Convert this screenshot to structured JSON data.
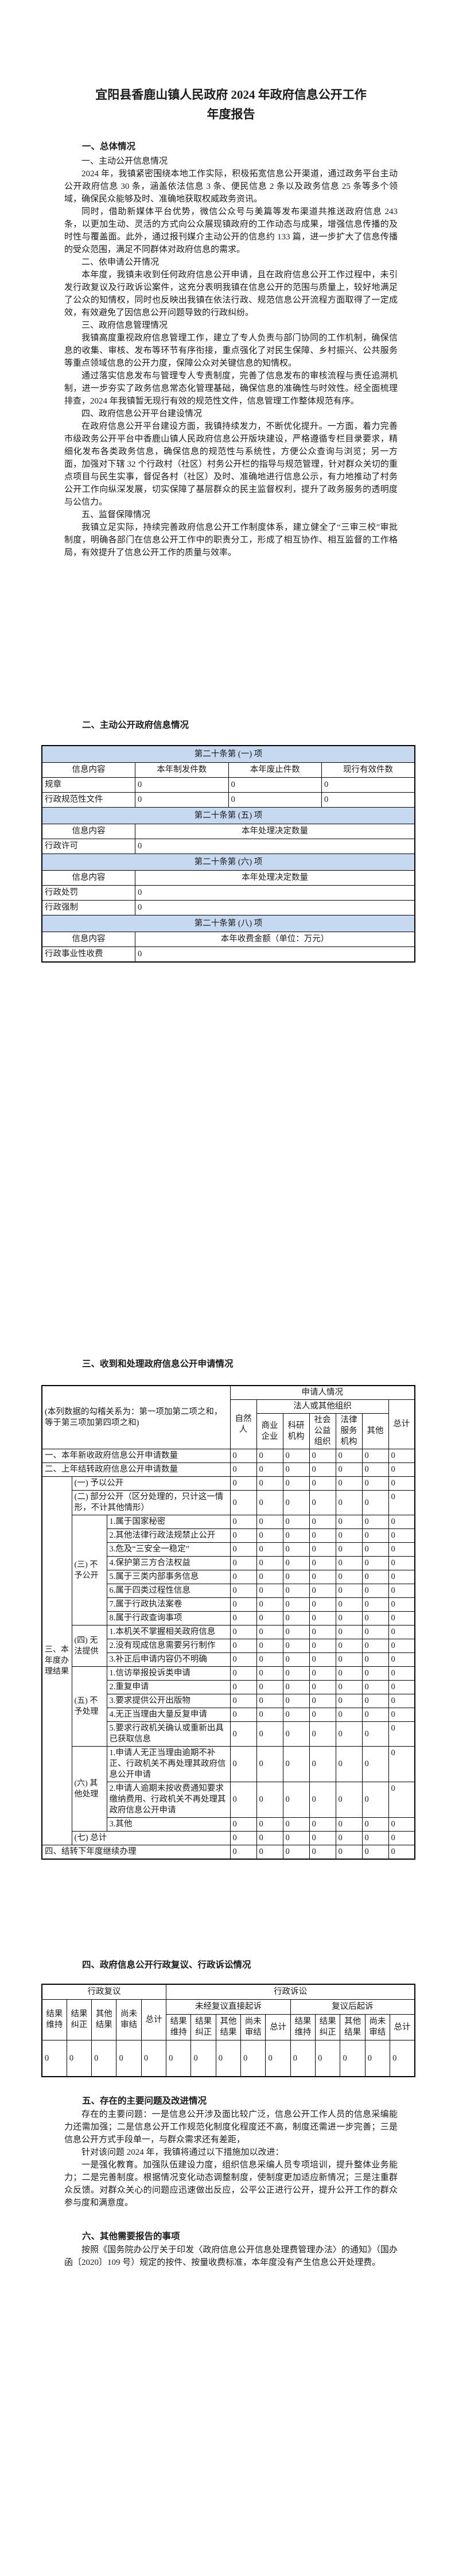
{
  "colors": {
    "band_bg": "#c6d9f0",
    "border": "#000000",
    "text": "#1a1a1a"
  },
  "doc": {
    "title_line1": "宜阳县香鹿山镇人民政府 2024 年政府信息公开工作",
    "title_line2": "年度报告"
  },
  "overview": {
    "heading": "一、总体情况",
    "paras": [
      "一、主动公开信息情况",
      "2024 年，我镇紧密围绕本地工作实际，积极拓宽信息公开渠道，通过政务平台主动公开政府信息 30 条，涵盖依法信息 3 条、便民信息 2 条以及政务信息 25 条等多个领域，确保民众能够及时、准确地获取权威政务资讯。",
      "同时，借助新媒体平台优势，微信公众号与美篇等发布渠道共推送政府信息 243 条，以更加生动、灵活的方式向公众展现镇政府的工作动态与成果，增强信息传播的及时性与覆盖面。此外，通过报刊媒介主动公开的信息约 133 篇，进一步扩大了信息传播的受众范围，满足不同群体对政府信息的需求。",
      "二、依申请公开情况",
      "本年度，我镇未收到任何政府信息公开申请，且在政府信息公开工作过程中，未引发行政复议及行政诉讼案件，这充分表明我镇在信息公开的范围与质量上，较好地满足了公众的知情权，同时也反映出我镇在依法行政、规范信息公开流程方面取得了一定成效，有效避免了因信息公开问题导致的行政纠纷。",
      "三、政府信息管理情况",
      "我镇高度重视政府信息管理工作，建立了专人负责与部门协同的工作机制，确保信息的收集、审核、发布等环节有序衔接，重点强化了对民生保障、乡村振兴、公共服务等重点领域信息的公开力度，保障公众对关键信息的知情权。",
      "通过落实信息发布与管理专人专责制度，完善了信息发布的审核流程与责任追溯机制，进一步夯实了政务信息常态化管理基础，确保信息的准确性与时效性。经全面梳理排查，2024 年我镇暂无现行有效的规范性文件，信息管理工作整体规范有序。",
      "四、政府信息公开平台建设情况",
      "在政府信息公开平台建设方面，我镇持续发力，不断优化提升。一方面，着力完善市级政务公开平台中香鹿山镇人民政府信息公开版块建设，严格遵循专栏目录要求，精细化发布各类政务信息，确保信息的规范性与系统性，方便公众查询与浏览；另一方面，加强对下辖 32 个行政村（社区）村务公开栏的指导与规范管理，针对群众关切的重点项目与民生实事，督促各村（社区）及时、准确地进行信息公示，有力地推动了村务公开工作向纵深发展，切实保障了基层群众的民主监督权利，提升了政务服务的透明度与公信力。",
      "五、监督保障情况",
      "我镇立足实际，持续完善政府信息公开工作制度体系，建立健全了“三审三校”审批制度，明确各部门在信息公开工作中的职责分工，形成了相互协作、相互监督的工作格局，有效提升了信息公开工作的质量与效率。"
    ]
  },
  "proactive": {
    "heading": "二、主动公开政府信息情况",
    "bands": [
      {
        "title": "第二十条第 (一) 项",
        "h0": "信息内容",
        "h1": "本年制发件数",
        "h2": "本年废止件数",
        "h3": "现行有效件数",
        "rows": [
          {
            "label": "规章",
            "values": [
              "0",
              "0",
              "0"
            ]
          },
          {
            "label": "行政规范性文件",
            "values": [
              "0",
              "0",
              "0"
            ]
          }
        ]
      },
      {
        "title": "第二十条第 (五) 项",
        "h0": "信息内容",
        "h1": "本年处理决定数量",
        "rows": [
          {
            "label": "行政许可",
            "value": "0"
          }
        ]
      },
      {
        "title": "第二十条第 (六) 项",
        "h0": "信息内容",
        "h1": "本年处理决定数量",
        "rows": [
          {
            "label": "行政处罚",
            "value": "0"
          },
          {
            "label": "行政强制",
            "value": "0"
          }
        ]
      },
      {
        "title": "第二十条第 (八) 项",
        "h0": "信息内容",
        "h1": "本年收费金额（单位：万元）",
        "rows": [
          {
            "label": "行政事业性收费",
            "value": "0"
          }
        ]
      }
    ]
  },
  "apply": {
    "heading": "三、收到和处理政府信息公开申请情况",
    "note": "(本列数据的勾稽关系为：第一项加第二项之和，等于第三项加第四项之和)",
    "h_applicant": "申请人情况",
    "h_natural": "自然人",
    "h_legal": "法人或其他组织",
    "h_total": "总计",
    "legal_subs": [
      "商业企业",
      "科研机构",
      "社会公益组织",
      "法律服务机构",
      "其他"
    ],
    "row_new": {
      "label": "一、本年新收政府信息公开申请数量",
      "values": [
        "0",
        "0",
        "0",
        "0",
        "0",
        "0",
        "0"
      ]
    },
    "row_prev": {
      "label": "二、上年结转政府信息公开申请数量",
      "values": [
        "0",
        "0",
        "0",
        "0",
        "0",
        "0",
        "0"
      ]
    },
    "group_result": "三、本年度办理结果",
    "row_open": {
      "label": "(一) 予以公开",
      "values": [
        "0",
        "0",
        "0",
        "0",
        "0",
        "0",
        "0"
      ]
    },
    "row_partial": {
      "label": "(二) 部分公开（区分处理的，只计这一情形，不计其他情形）",
      "values": [
        "0",
        "0",
        "0",
        "0",
        "0",
        "0",
        "0"
      ]
    },
    "group_deny": "(三) 不予公开",
    "deny": [
      {
        "label": "1.属于国家秘密",
        "values": [
          "0",
          "0",
          "0",
          "0",
          "0",
          "0",
          "0"
        ]
      },
      {
        "label": "2.其他法律行政法规禁止公开",
        "values": [
          "0",
          "0",
          "0",
          "0",
          "0",
          "0",
          "0"
        ]
      },
      {
        "label": "3.危及“三安全一稳定”",
        "values": [
          "0",
          "0",
          "0",
          "0",
          "0",
          "0",
          "0"
        ]
      },
      {
        "label": "4.保护第三方合法权益",
        "values": [
          "0",
          "0",
          "0",
          "0",
          "0",
          "0",
          "0"
        ]
      },
      {
        "label": "5.属于三类内部事务信息",
        "values": [
          "0",
          "0",
          "0",
          "0",
          "0",
          "0",
          "0"
        ]
      },
      {
        "label": "6.属于四类过程性信息",
        "values": [
          "0",
          "0",
          "0",
          "0",
          "0",
          "0",
          "0"
        ]
      },
      {
        "label": "7.属于行政执法案卷",
        "values": [
          "0",
          "0",
          "0",
          "0",
          "0",
          "0",
          "0"
        ]
      },
      {
        "label": "8.属于行政查询事项",
        "values": [
          "0",
          "0",
          "0",
          "0",
          "0",
          "0",
          "0"
        ]
      }
    ],
    "group_unable": "(四) 无法提供",
    "unable": [
      {
        "label": "1.本机关不掌握相关政府信息",
        "values": [
          "0",
          "0",
          "0",
          "0",
          "0",
          "0",
          "0"
        ]
      },
      {
        "label": "2.没有现成信息需要另行制作",
        "values": [
          "0",
          "0",
          "0",
          "0",
          "0",
          "0",
          "0"
        ]
      },
      {
        "label": "3.补正后申请内容仍不明确",
        "values": [
          "0",
          "0",
          "0",
          "0",
          "0",
          "0",
          "0"
        ]
      }
    ],
    "group_reject": "(五) 不予处理",
    "reject": [
      {
        "label": "1.信访举报投诉类申请",
        "values": [
          "0",
          "0",
          "0",
          "0",
          "0",
          "0",
          "0"
        ]
      },
      {
        "label": "2.重复申请",
        "values": [
          "0",
          "0",
          "0",
          "0",
          "0",
          "0",
          "0"
        ]
      },
      {
        "label": "3.要求提供公开出版物",
        "values": [
          "0",
          "0",
          "0",
          "0",
          "0",
          "0",
          "0"
        ]
      },
      {
        "label": "4.无正当理由大量反复申请",
        "values": [
          "0",
          "0",
          "0",
          "0",
          "0",
          "0",
          "0"
        ]
      },
      {
        "label": "5.要求行政机关确认或重新出具已获取信息",
        "values": [
          "0",
          "0",
          "0",
          "0",
          "0",
          "0",
          "0"
        ]
      }
    ],
    "group_other": "(六) 其他处理",
    "other": [
      {
        "label": "1.申请人无正当理由逾期不补正、行政机关不再处理其政府信息公开申请",
        "values": [
          "0",
          "0",
          "0",
          "0",
          "0",
          "0",
          "0"
        ]
      },
      {
        "label": "2.申请人逾期未按收费通知要求缴纳费用、行政机关不再处理其政府信息公开申请",
        "values": [
          "0",
          "0",
          "0",
          "0",
          "0",
          "0",
          "0"
        ]
      },
      {
        "label": "3.其他",
        "values": [
          "0",
          "0",
          "0",
          "0",
          "0",
          "0",
          "0"
        ]
      }
    ],
    "row_total": {
      "label": "(七) 总计",
      "values": [
        "0",
        "0",
        "0",
        "0",
        "0",
        "0",
        "0"
      ]
    },
    "row_carry": {
      "label": "四、结转下年度继续办理",
      "values": [
        "0",
        "0",
        "0",
        "0",
        "0",
        "0",
        "0"
      ]
    }
  },
  "review": {
    "heading": "四、政府信息公开行政复议、行政诉讼情况",
    "h_review": "行政复议",
    "h_lawsuit": "行政诉讼",
    "h_direct": "未经复议直接起诉",
    "h_after": "复议后起诉",
    "subs": [
      "结果维持",
      "结果纠正",
      "其他结果",
      "尚未审结",
      "总计"
    ],
    "values": [
      "0",
      "0",
      "0",
      "0",
      "0",
      "0",
      "0",
      "0",
      "0",
      "0",
      "0",
      "0",
      "0",
      "0",
      "0"
    ]
  },
  "problems": {
    "heading": "五、存在的主要问题及改进情况",
    "paras": [
      "存在的主要问题：一是信息公开涉及面比较广泛，信息公开工作人员的信息采编能力还需加强；二是信息公开工作规范化制度化程度还不高，制度还需进一步完善；三是信息公开方式手段单一，与群众需求还有差距，",
      "针对该问题 2024 年，我镇将通过以下措施加以改进：",
      "一是强化教育。加强队伍建设力度，组织信息采编人员专项培训，提升整体业务能力；二是完善制度。根据情况变化动态调整制度，使制度更加适应新情况；三是注重群众反馈。对群众关心的问题应迅速做出反应，公平公正进行公开，提升公开工作的群众参与度和满意度。"
    ]
  },
  "other_items": {
    "heading": "六、其他需要报告的事项",
    "paras": [
      "按照《国务院办公厅关于印发〈政府信息公开信息处理费管理办法〉的通知》（国办函〔2020〕109 号）规定的按件、按量收费标准，本年度没有产生信息公开处理费。"
    ]
  }
}
